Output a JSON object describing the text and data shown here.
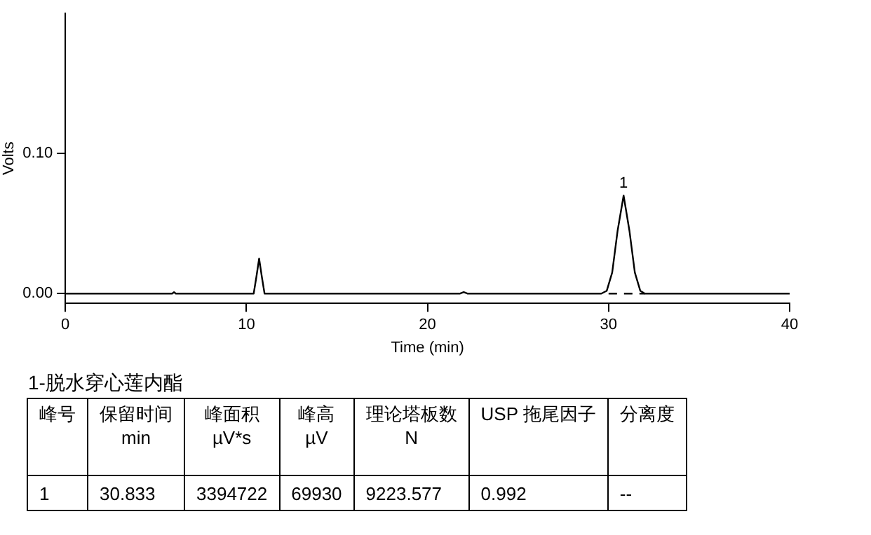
{
  "chart_data": {
    "type": "line",
    "title": "1-脱水穿心莲内酯",
    "xlabel": "Time (min)",
    "ylabel": "Volts",
    "xlim": [
      0,
      40
    ],
    "xticks": [
      0,
      10,
      20,
      30,
      40
    ],
    "ylim": [
      -0.007,
      0.2
    ],
    "yticks": [
      {
        "value": 0,
        "label": "0.00"
      },
      {
        "value": 0.1,
        "label": "0.10"
      }
    ],
    "grid": false,
    "legend": false,
    "marker": "none",
    "series": [
      {
        "color": "#000000",
        "line_style": "solid",
        "x": [
          0,
          5.9,
          6,
          6.1,
          10.4,
          10.55,
          10.7,
          10.85,
          11.0,
          21.8,
          22,
          22.2,
          29.6,
          29.9,
          30.2,
          30.5,
          30.83,
          31.15,
          31.45,
          31.75,
          32.0,
          40
        ],
        "values": [
          0,
          0,
          0.001,
          0,
          0,
          0.012,
          0.025,
          0.012,
          0,
          0,
          0.001,
          0,
          0,
          0.002,
          0.015,
          0.045,
          0.07,
          0.045,
          0.015,
          0.002,
          0,
          0
        ]
      },
      {
        "color": "#000000",
        "line_style": "dashed",
        "x": [
          30,
          32
        ],
        "values": [
          0,
          0
        ]
      }
    ],
    "annotations": [
      {
        "text": "1",
        "x": 30.83,
        "y": 0.07
      },
      "峰号",
      "保留时间\nmin",
      "峰面积\nµV*s",
      "峰高\nµV",
      "理论塔板数\nN",
      "USP 拖尾因子",
      "分离度",
      "1",
      "30.833",
      "3394722",
      "69930",
      "9223.577",
      "0.992",
      "--"
    ]
  }
}
